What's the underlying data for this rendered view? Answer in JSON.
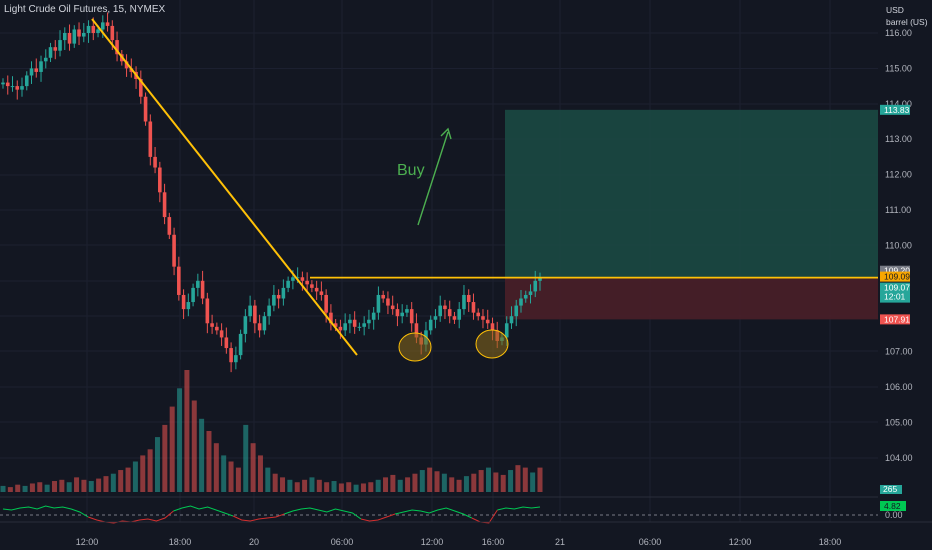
{
  "header": {
    "title": "Light Crude Oil Futures, 15, NYMEX",
    "unit_top": "USD",
    "unit_bottom": "barrel (US)"
  },
  "annotation": {
    "buy_label": "Buy"
  },
  "colors": {
    "background": "#131722",
    "up": "#26a69a",
    "down": "#ef5350",
    "trendline": "#ffc107",
    "target_zone": "#1b4c44",
    "stop_zone": "#4a1f28"
  },
  "position": {
    "entry": 109.09,
    "target": 113.83,
    "stop": 107.91,
    "target_label": "113.83",
    "entry_label": "109.09",
    "stop_label": "107.91",
    "current_label": "109.20",
    "last_label": "109.07",
    "timer_label": "12:01"
  },
  "indicators": {
    "volume_label": "265",
    "oscillator_label": "4.82",
    "zero_label": "0.00"
  },
  "chart_data": {
    "type": "candlestick",
    "y_axis": {
      "ticks": [
        "116.00",
        "115.00",
        "114.00",
        "113.00",
        "112.00",
        "111.00",
        "110.00",
        "107.00",
        "106.00",
        "105.00",
        "104.00"
      ],
      "range": [
        103.1,
        116.5
      ]
    },
    "x_axis": {
      "ticks": [
        "12:00",
        "18:00",
        "20",
        "06:00",
        "12:00",
        "16:00",
        "21",
        "06:00",
        "12:00",
        "18:00"
      ]
    },
    "ohlc_close_path": [
      [
        114.6,
        114.5,
        114.5,
        114.4,
        114.5,
        114.8,
        115.0,
        114.9,
        115.2,
        115.3,
        115.6,
        115.5,
        115.8,
        116.0,
        115.7,
        116.1,
        115.9,
        116.0,
        116.2,
        116.0,
        116.1,
        116.3,
        116.2
      ],
      [
        115.8,
        115.4,
        115.2,
        115.0,
        114.9,
        114.7,
        114.2,
        113.5,
        112.5,
        112.2,
        111.5,
        110.8,
        110.3,
        109.4,
        108.6,
        108.2,
        108.4,
        108.8,
        109.0,
        108.5,
        107.8,
        107.7,
        107.6,
        107.4,
        107.1,
        106.7,
        106.9
      ],
      [
        107.5,
        108.0,
        108.3,
        107.8,
        107.6,
        108.0,
        108.3,
        108.6,
        108.5,
        108.8,
        109.0,
        109.1,
        109.1,
        109.0,
        108.9,
        108.8,
        108.7,
        108.6,
        108.1,
        107.8,
        107.7,
        107.6,
        107.8,
        107.9,
        107.7,
        107.7,
        107.8,
        107.9
      ],
      [
        108.1,
        108.6,
        108.5,
        108.3,
        108.2,
        108.0,
        108.1,
        108.2,
        107.8,
        107.4,
        107.2,
        107.6,
        107.9,
        108.0,
        108.3,
        108.2,
        108.0,
        107.9,
        108.2,
        108.6,
        108.4,
        108.1,
        108.0,
        107.9,
        107.8,
        107.6,
        107.3,
        107.4,
        107.8,
        108.0,
        108.3,
        108.5,
        108.6,
        108.7,
        109.0,
        109.07
      ]
    ],
    "volume_relative": [
      0.05,
      0.04,
      0.06,
      0.05,
      0.07,
      0.08,
      0.06,
      0.09,
      0.1,
      0.08,
      0.12,
      0.1,
      0.09,
      0.11,
      0.13,
      0.15,
      0.18,
      0.2,
      0.25,
      0.3,
      0.35,
      0.45,
      0.55,
      0.7,
      0.85,
      1.0,
      0.75,
      0.6,
      0.5,
      0.4,
      0.3,
      0.25,
      0.2,
      0.55,
      0.4,
      0.3,
      0.2,
      0.15,
      0.12,
      0.1,
      0.08,
      0.1,
      0.12,
      0.1,
      0.08,
      0.09,
      0.07,
      0.08,
      0.06,
      0.07,
      0.08,
      0.1,
      0.12,
      0.14,
      0.1,
      0.12,
      0.15,
      0.18,
      0.2,
      0.17,
      0.15,
      0.12,
      0.1,
      0.13,
      0.15,
      0.18,
      0.2,
      0.16,
      0.14,
      0.18,
      0.22,
      0.2,
      0.16,
      0.2
    ]
  }
}
